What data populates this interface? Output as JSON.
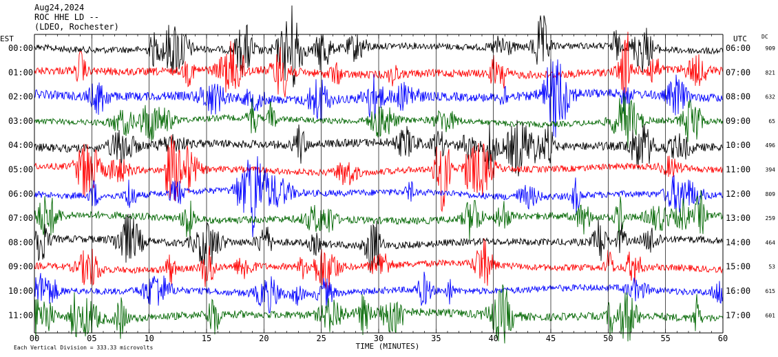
{
  "header": {
    "date": "Aug24,2024",
    "station": "ROC HHE LD --",
    "network": "(LDEO, Rochester)"
  },
  "footer": {
    "scale_note": "Each Vertical Division = 333.33 microvolts"
  },
  "colors": {
    "trace_cycle": [
      "#000000",
      "#ff0000",
      "#0000ff",
      "#006600"
    ],
    "grid": "#000000",
    "background": "#ffffff"
  },
  "chart_data": {
    "type": "line",
    "subtype": "helicorder",
    "title": "",
    "xlabel": "TIME (MINUTES)",
    "xlim": [
      0,
      60
    ],
    "x_ticks": [
      "00",
      "05",
      "10",
      "15",
      "20",
      "25",
      "30",
      "35",
      "40",
      "45",
      "50",
      "55",
      "60"
    ],
    "left_axis_label": "EST",
    "right_axis_label": "UTC",
    "dc_label": "DC",
    "grid": true,
    "rows": [
      {
        "est": "00:00",
        "utc": "06:00",
        "dc": "909"
      },
      {
        "est": "01:00",
        "utc": "07:00",
        "dc": "821"
      },
      {
        "est": "02:00",
        "utc": "08:00",
        "dc": "632"
      },
      {
        "est": "03:00",
        "utc": "09:00",
        "dc": "65"
      },
      {
        "est": "04:00",
        "utc": "10:00",
        "dc": "496"
      },
      {
        "est": "05:00",
        "utc": "11:00",
        "dc": "394"
      },
      {
        "est": "06:00",
        "utc": "12:00",
        "dc": "809"
      },
      {
        "est": "07:00",
        "utc": "13:00",
        "dc": "259"
      },
      {
        "est": "08:00",
        "utc": "14:00",
        "dc": "464"
      },
      {
        "est": "09:00",
        "utc": "15:00",
        "dc": "53"
      },
      {
        "est": "10:00",
        "utc": "16:00",
        "dc": "615"
      },
      {
        "est": "11:00",
        "utc": "17:00",
        "dc": "601"
      }
    ]
  }
}
